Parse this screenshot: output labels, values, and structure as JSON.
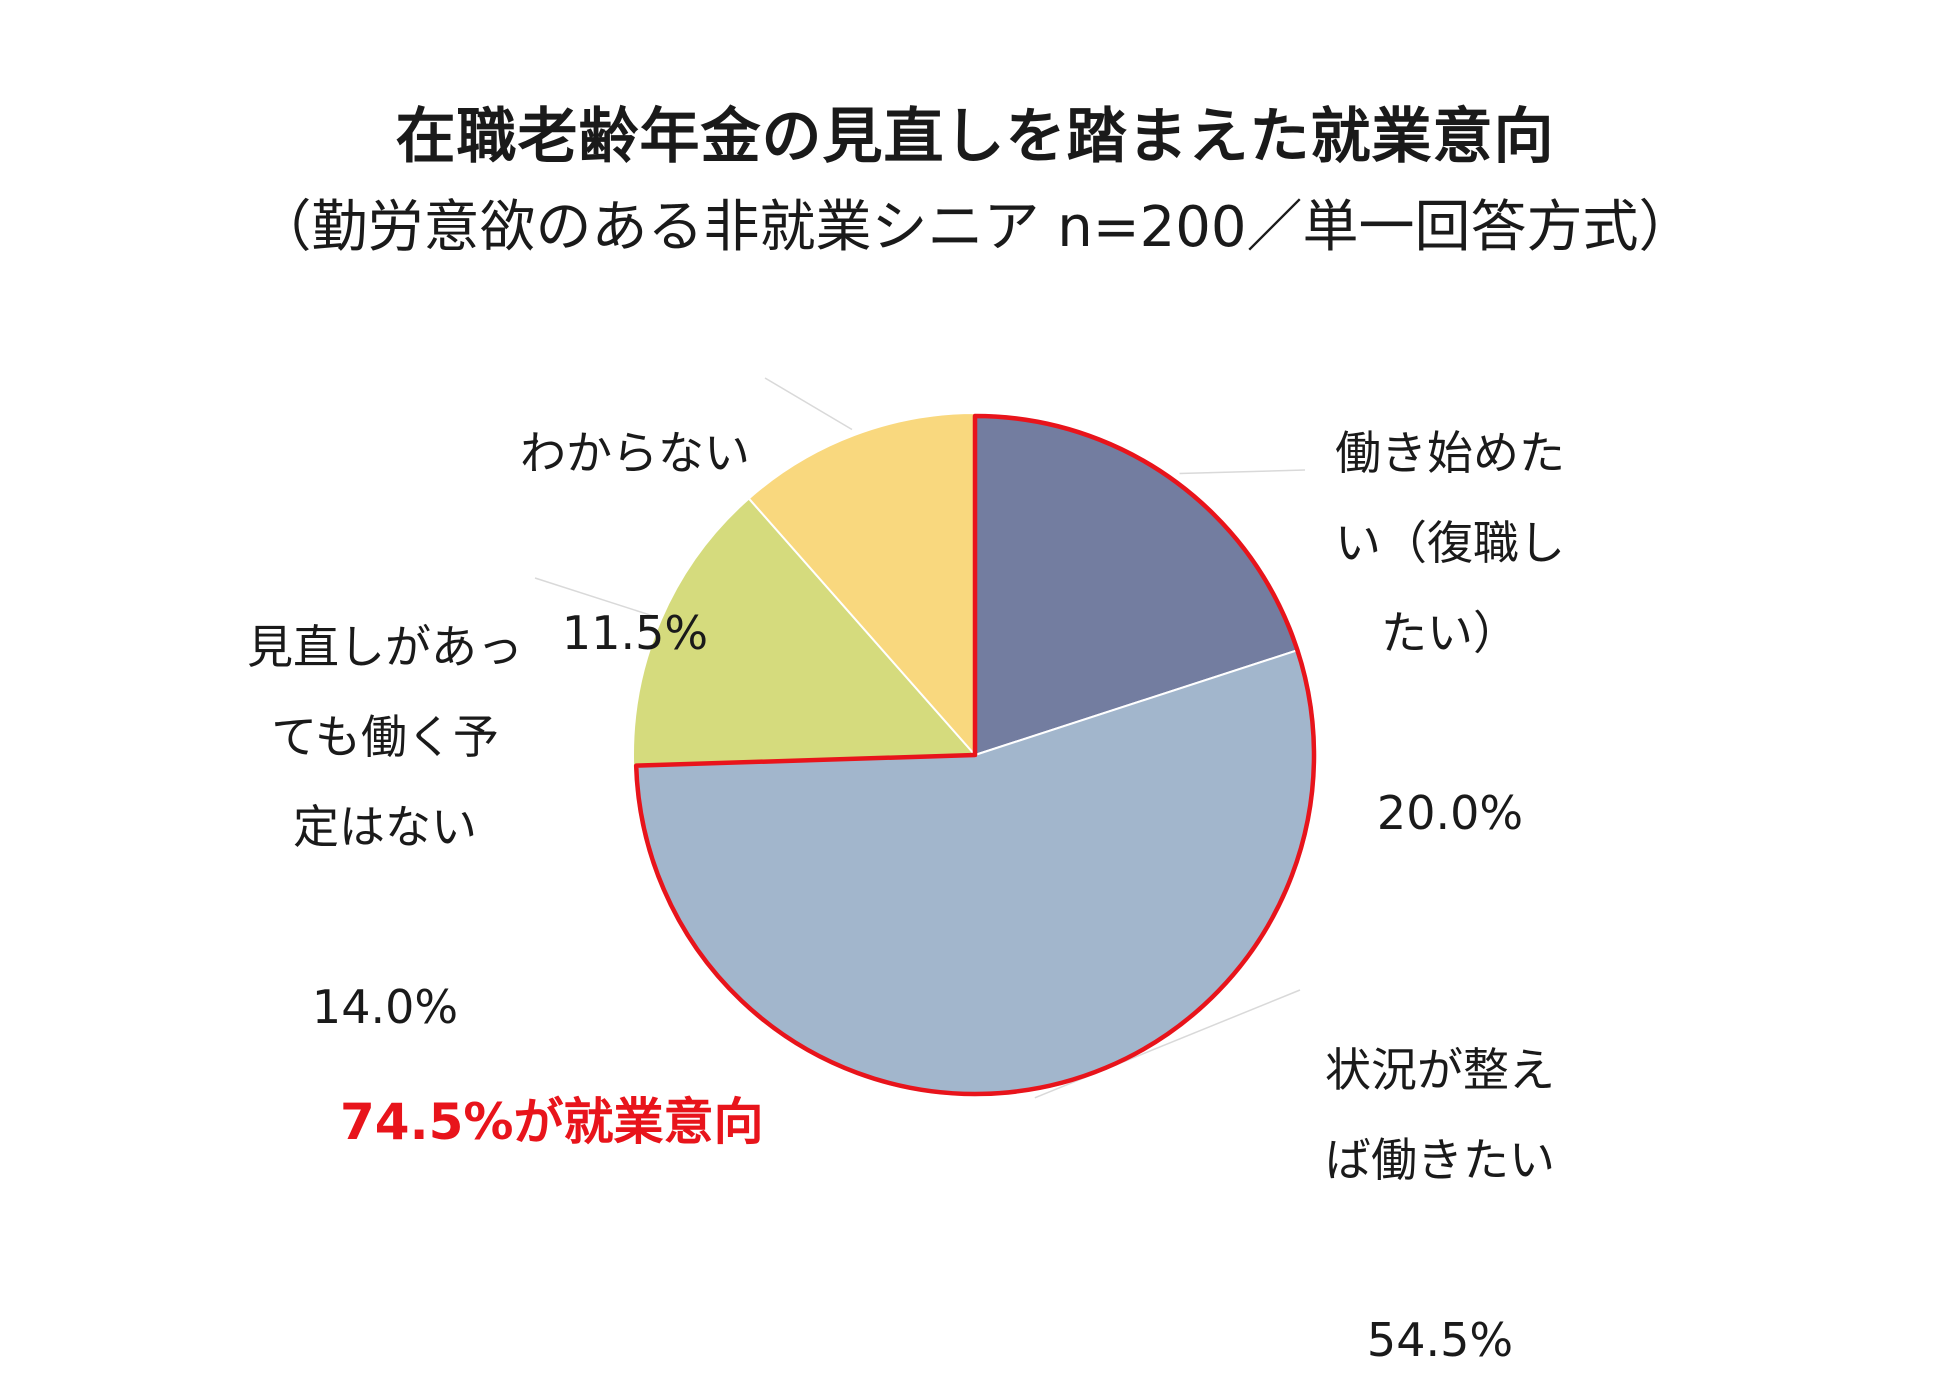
{
  "chart_data": {
    "type": "pie",
    "title": "在職老齢年金の見直しを踏まえた就業意向",
    "subtitle": "（勤労意欲のある非就業シニア n=200／単一回答方式）",
    "slices": [
      {
        "label": "働き始めたい（復職したい）",
        "display_label": "働き始めた\nい（復職し\nたい）",
        "value": 20.0,
        "value_label": "20.0%",
        "color": "#737da0"
      },
      {
        "label": "状況が整えば働きたい",
        "display_label": "状況が整え\nば働きたい",
        "value": 54.5,
        "value_label": "54.5%",
        "color": "#a2b6cc"
      },
      {
        "label": "見直しがあっても働く予定はない",
        "display_label": "見直しがあっ\nても働く予\n定はない",
        "value": 14.0,
        "value_label": "14.0%",
        "color": "#d5db7d"
      },
      {
        "label": "わからない",
        "display_label": "わからない",
        "value": 11.5,
        "value_label": "11.5%",
        "color": "#f9d87e"
      }
    ],
    "start_angle": "12 o'clock",
    "direction": "clockwise",
    "highlight": {
      "slices": [
        0,
        1
      ],
      "outline_color": "#e8141b"
    },
    "callout": "74.5%が就業意向"
  }
}
